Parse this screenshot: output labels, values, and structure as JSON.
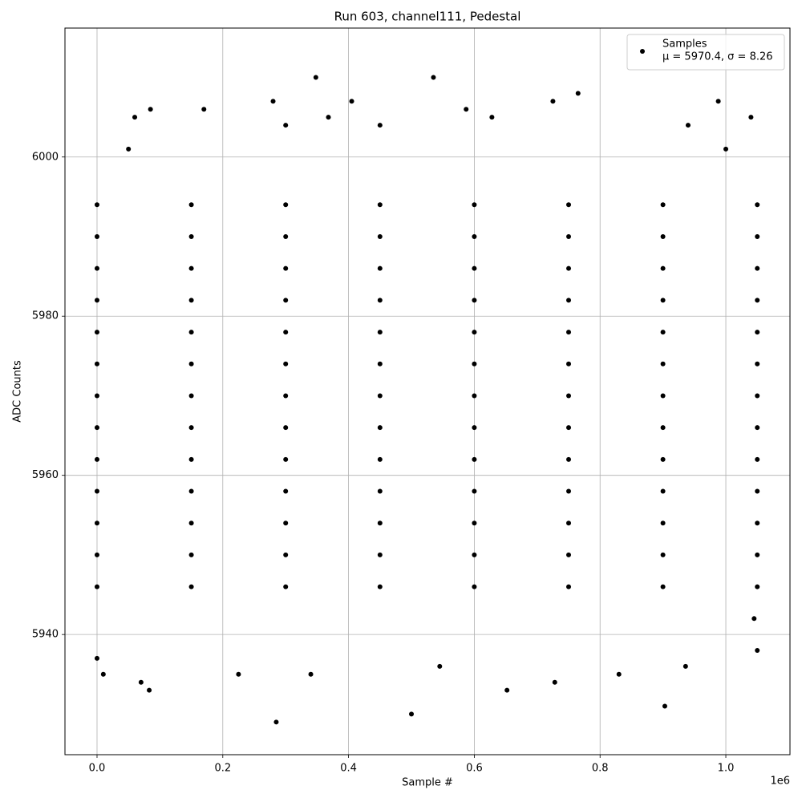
{
  "chart_data": {
    "type": "scatter",
    "title": "Run 603, channel111, Pedestal",
    "x_label": "Sample #",
    "y_label": "ADC Counts",
    "x_offset_label": "1e6",
    "xlim": [
      -51000,
      1102000
    ],
    "ylim": [
      5924.9,
      6016.2
    ],
    "xticks": [
      {
        "value": 0,
        "label": "0.0"
      },
      {
        "value": 200000,
        "label": "0.2"
      },
      {
        "value": 400000,
        "label": "0.4"
      },
      {
        "value": 600000,
        "label": "0.6"
      },
      {
        "value": 800000,
        "label": "0.8"
      },
      {
        "value": 1000000,
        "label": "1.0"
      }
    ],
    "yticks": [
      5940,
      5960,
      5980,
      6000
    ],
    "grid": true,
    "legend_position": "upper right",
    "legend_note": "μ = 5970.4, σ = 8.26",
    "series": [
      {
        "name": "Samples",
        "color": "#000000",
        "x": [
          0,
          10000,
          70000,
          83000,
          285000,
          500000,
          652000,
          728000,
          903000,
          545000,
          830000,
          936000,
          280000,
          348000,
          405000,
          535000,
          765000,
          725000,
          988000,
          170000,
          368000,
          587000,
          85000,
          628000,
          1040000,
          60000,
          1050000,
          340000,
          225000,
          1045000,
          50000,
          300000,
          450000,
          940000,
          1000000,
          0,
          150000,
          300000,
          450000,
          600000,
          750000,
          900000,
          1050000,
          0,
          150000,
          300000,
          450000,
          600000,
          750000,
          900000,
          1050000,
          0,
          150000,
          300000,
          450000,
          600000,
          750000,
          900000,
          1050000,
          0,
          150000,
          300000,
          450000,
          600000,
          750000,
          900000,
          1050000,
          0,
          150000,
          300000,
          450000,
          600000,
          750000,
          900000,
          1050000,
          0,
          150000,
          300000,
          450000,
          600000,
          750000,
          900000,
          1050000,
          0,
          150000,
          300000,
          450000,
          600000,
          750000,
          900000,
          1050000,
          0,
          150000,
          300000,
          450000,
          600000,
          750000,
          900000,
          1050000,
          0,
          150000,
          300000,
          450000,
          600000,
          750000,
          900000,
          1050000,
          0,
          150000,
          300000,
          450000,
          600000,
          750000,
          900000,
          1050000,
          0,
          150000,
          300000,
          450000,
          600000,
          750000,
          900000,
          1050000,
          0,
          150000,
          300000,
          450000,
          600000,
          750000,
          900000,
          1050000,
          0,
          150000,
          300000,
          450000,
          600000,
          750000,
          900000,
          1050000
        ],
        "values": [
          5937,
          5935,
          5934,
          5933,
          5929,
          5930,
          5933,
          5934,
          5931,
          5936,
          5935,
          5936,
          6007,
          6010,
          6007,
          6010,
          6008,
          6007,
          6007,
          6006,
          6005,
          6006,
          6006,
          6005,
          6005,
          6005,
          5938,
          5935,
          5935,
          5942,
          6001,
          6004,
          6004,
          6004,
          6001,
          5946,
          5946,
          5946,
          5946,
          5946,
          5946,
          5946,
          5946,
          5950,
          5950,
          5950,
          5950,
          5950,
          5950,
          5950,
          5950,
          5954,
          5954,
          5954,
          5954,
          5954,
          5954,
          5954,
          5954,
          5958,
          5958,
          5958,
          5958,
          5958,
          5958,
          5958,
          5958,
          5962,
          5962,
          5962,
          5962,
          5962,
          5962,
          5962,
          5962,
          5966,
          5966,
          5966,
          5966,
          5966,
          5966,
          5966,
          5966,
          5970,
          5970,
          5970,
          5970,
          5970,
          5970,
          5970,
          5970,
          5974,
          5974,
          5974,
          5974,
          5974,
          5974,
          5974,
          5974,
          5978,
          5978,
          5978,
          5978,
          5978,
          5978,
          5978,
          5978,
          5982,
          5982,
          5982,
          5982,
          5982,
          5982,
          5982,
          5982,
          5986,
          5986,
          5986,
          5986,
          5986,
          5986,
          5986,
          5986,
          5990,
          5990,
          5990,
          5990,
          5990,
          5990,
          5990,
          5990,
          5994,
          5994,
          5994,
          5994,
          5994,
          5994,
          5994,
          5994
        ]
      }
    ]
  }
}
